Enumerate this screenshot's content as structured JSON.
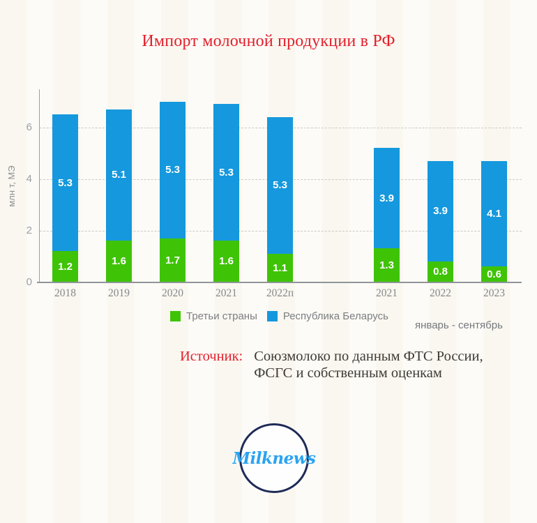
{
  "title": {
    "text": "Импорт молочной продукции в РФ",
    "color": "#e2202c"
  },
  "chart_data": {
    "type": "bar",
    "stacked": true,
    "title": "Импорт молочной продукции в РФ",
    "ylabel": "млн т, МЭ",
    "xlabel": "",
    "ylim": [
      0,
      7.5
    ],
    "yticks": [
      0,
      2,
      4,
      6
    ],
    "grid": "horizontal dashed",
    "legend_position": "bottom",
    "series_colors": {
      "Третьи страны": "#3fc306",
      "Республика Беларусь": "#1598dd"
    },
    "groups": [
      {
        "period_label": "",
        "categories": [
          "2018",
          "2019",
          "2020",
          "2021",
          "2022п"
        ],
        "series": [
          {
            "name": "Третьи страны",
            "values": [
              1.2,
              1.6,
              1.7,
              1.6,
              1.1
            ]
          },
          {
            "name": "Республика Беларусь",
            "values": [
              5.3,
              5.1,
              5.3,
              5.3,
              5.3
            ]
          }
        ],
        "totals": [
          6.5,
          6.7,
          7.0,
          6.9,
          6.4
        ]
      },
      {
        "period_label": "январь - сентябрь",
        "categories": [
          "2021",
          "2022",
          "2023"
        ],
        "series": [
          {
            "name": "Третьи страны",
            "values": [
              1.3,
              0.8,
              0.6
            ]
          },
          {
            "name": "Республика Беларусь",
            "values": [
              3.9,
              3.9,
              4.1
            ]
          }
        ],
        "totals": [
          5.2,
          4.7,
          4.7
        ]
      }
    ]
  },
  "legend": {
    "items": [
      {
        "label": "Третьи страны",
        "color": "#3fc306"
      },
      {
        "label": "Республика Беларусь",
        "color": "#1598dd"
      }
    ]
  },
  "period_note": "январь - сентябрь",
  "source": {
    "label": "Источник:",
    "label_color": "#e2202c",
    "text": "Союзмолоко по данным ФТС России, ФСГС и собственным оценкам"
  },
  "logo": {
    "text": "Milknews",
    "text_color": "#2aa3f1",
    "border_color": "#1f2b57"
  }
}
